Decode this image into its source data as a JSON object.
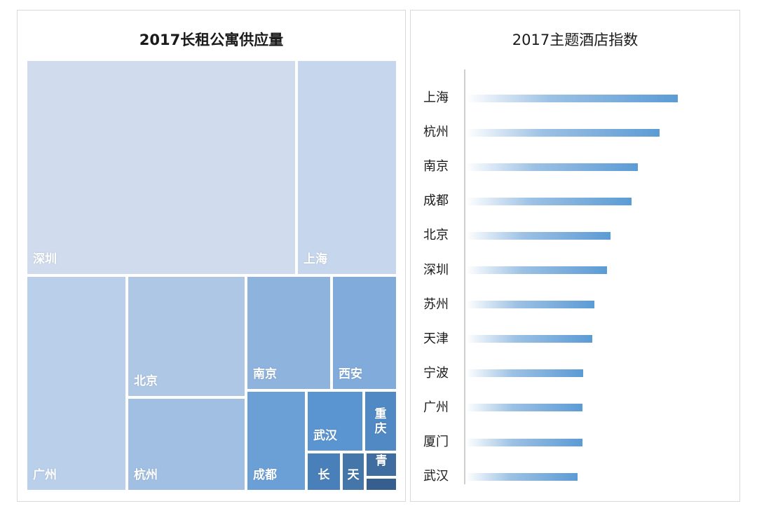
{
  "colors": {
    "bar_end": "#5b9bd5",
    "tile_palette": [
      "#d0dcee",
      "#c6d6ec",
      "#bacfea",
      "#aec7e5",
      "#a1bfe2",
      "#8eb3dd",
      "#80abdb",
      "#6ba0d6",
      "#5a95d1",
      "#5089c4",
      "#4a80b9",
      "#4476aa",
      "#3f6da0",
      "#375f8e"
    ]
  },
  "chart_data": [
    {
      "type": "treemap",
      "title": "2017长租公寓供应量",
      "items": [
        {
          "name": "深圳",
          "value": 100
        },
        {
          "name": "上海",
          "value": 29.3
        },
        {
          "name": "广州",
          "value": 24.5
        },
        {
          "name": "北京",
          "value": 16.6
        },
        {
          "name": "杭州",
          "value": 15.1
        },
        {
          "name": "南京",
          "value": 11.1
        },
        {
          "name": "西安",
          "value": 7.9
        },
        {
          "name": "成都",
          "value": 7.5
        },
        {
          "name": "武汉",
          "value": 5.7
        },
        {
          "name": "重庆",
          "value": 2.9
        },
        {
          "name": "长",
          "value": 2.3
        },
        {
          "name": "天",
          "value": 2.0
        },
        {
          "name": "青",
          "value": 1.3
        },
        {
          "name": "",
          "value": 0.6
        }
      ]
    },
    {
      "type": "bar",
      "orientation": "horizontal",
      "title": "2017主题酒店指数",
      "categories": [
        "上海",
        "杭州",
        "南京",
        "成都",
        "北京",
        "深圳",
        "苏州",
        "天津",
        "宁波",
        "广州",
        "厦门",
        "武汉"
      ],
      "values": [
        100,
        91.4,
        81.2,
        78.2,
        68.3,
        66.7,
        60.7,
        59.7,
        55.4,
        55.1,
        55.1,
        52.5
      ],
      "xlim": [
        0,
        100
      ]
    }
  ]
}
